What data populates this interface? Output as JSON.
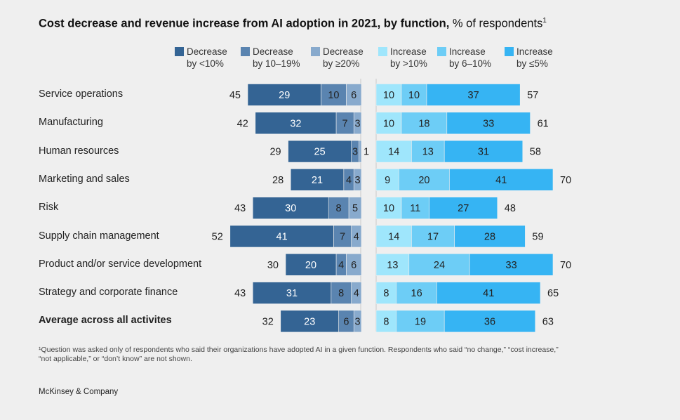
{
  "chart_data": {
    "type": "bar",
    "orientation": "horizontal-diverging-stacked",
    "title": "Cost decrease and revenue increase from AI adoption in 2021, by function,",
    "title_suffix": "% of respondents",
    "title_footnote_mark": "1",
    "categories": [
      "Service operations",
      "Manufacturing",
      "Human resources",
      "Marketing and sales",
      "Risk",
      "Supply chain management",
      "Product and/or service development",
      "Strategy and corporate finance",
      "Average across all activites"
    ],
    "bold_category": "Average across all activites",
    "decrease_series": [
      {
        "name": "Decrease\nby <10%",
        "color": "#346494",
        "values": [
          29,
          32,
          25,
          21,
          30,
          41,
          20,
          31,
          23
        ]
      },
      {
        "name": "Decrease\nby 10–19%",
        "color": "#5a84b0",
        "values": [
          10,
          7,
          3,
          4,
          8,
          7,
          4,
          8,
          6
        ]
      },
      {
        "name": "Decrease\nby ≥20%",
        "color": "#88aacd",
        "values": [
          6,
          3,
          1,
          3,
          5,
          4,
          6,
          4,
          3
        ]
      }
    ],
    "increase_series": [
      {
        "name": "Increase\nby >10%",
        "color": "#9fe6fc",
        "values": [
          10,
          10,
          14,
          9,
          10,
          14,
          13,
          8,
          8
        ]
      },
      {
        "name": "Increase\nby 6–10%",
        "color": "#6dcdf6",
        "values": [
          10,
          18,
          13,
          20,
          11,
          17,
          24,
          16,
          19
        ]
      },
      {
        "name": "Increase\nby ≤5%",
        "color": "#36b4f3",
        "values": [
          37,
          33,
          31,
          41,
          27,
          28,
          33,
          41,
          36
        ]
      }
    ],
    "decrease_totals": [
      45,
      42,
      29,
      28,
      43,
      52,
      30,
      43,
      32
    ],
    "increase_totals": [
      57,
      61,
      58,
      70,
      48,
      59,
      70,
      65,
      63
    ],
    "legend_position": "top",
    "grid": false
  },
  "footnote": "¹Question was asked only of respondents who said their organizations have adopted AI in a given function. Respondents who said “no change,” “cost increase,” “not applicable,” or “don’t know” are not shown.",
  "brand": "McKinsey & Company"
}
